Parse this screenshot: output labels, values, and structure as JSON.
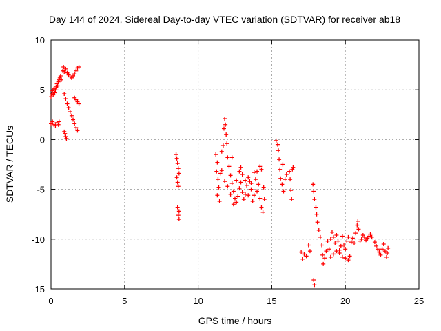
{
  "chart_data": {
    "type": "scatter",
    "title": "Day 144 of 2024, Sidereal Day-to-day VTEC variation (SDTVAR) for receiver ab18",
    "xlabel": "GPS time / hours",
    "ylabel": "SDTVAR / TECUs",
    "xlim": [
      0,
      25
    ],
    "ylim": [
      -15,
      10
    ],
    "xticks": [
      "0",
      "5",
      "10",
      "15",
      "20",
      "25"
    ],
    "yticks": [
      "10",
      "5",
      "0",
      "-5",
      "-10",
      "-15"
    ],
    "grid": true,
    "legend": "none",
    "marker": "+",
    "color": "#ff0000",
    "series": [
      {
        "points": [
          [
            0.0,
            4.3
          ],
          [
            0.05,
            4.6
          ],
          [
            0.1,
            4.9
          ],
          [
            0.15,
            4.5
          ],
          [
            0.2,
            5.1
          ],
          [
            0.25,
            4.7
          ],
          [
            0.3,
            5.0
          ],
          [
            0.35,
            5.3
          ],
          [
            0.4,
            5.6
          ],
          [
            0.45,
            5.4
          ],
          [
            0.5,
            5.8
          ],
          [
            0.55,
            6.0
          ],
          [
            0.6,
            6.2
          ],
          [
            0.65,
            6.4
          ],
          [
            0.7,
            6.0
          ],
          [
            0.0,
            1.6
          ],
          [
            0.1,
            1.8
          ],
          [
            0.2,
            1.5
          ],
          [
            0.3,
            1.4
          ],
          [
            0.4,
            1.7
          ],
          [
            0.5,
            1.5
          ],
          [
            0.55,
            1.8
          ],
          [
            0.8,
            6.9
          ],
          [
            0.85,
            7.3
          ],
          [
            0.9,
            6.8
          ],
          [
            1.0,
            7.1
          ],
          [
            1.1,
            6.7
          ],
          [
            1.2,
            6.5
          ],
          [
            1.3,
            6.3
          ],
          [
            1.4,
            6.2
          ],
          [
            1.5,
            6.4
          ],
          [
            1.6,
            6.6
          ],
          [
            1.7,
            6.9
          ],
          [
            1.8,
            7.2
          ],
          [
            1.9,
            7.3
          ],
          [
            0.9,
            4.6
          ],
          [
            1.0,
            4.1
          ],
          [
            1.1,
            3.6
          ],
          [
            1.2,
            3.2
          ],
          [
            1.3,
            2.8
          ],
          [
            1.4,
            2.4
          ],
          [
            1.5,
            2.0
          ],
          [
            1.6,
            1.6
          ],
          [
            1.7,
            1.2
          ],
          [
            1.8,
            0.9
          ],
          [
            0.9,
            0.8
          ],
          [
            0.95,
            0.6
          ],
          [
            1.0,
            0.3
          ],
          [
            1.05,
            0.1
          ],
          [
            1.6,
            4.2
          ],
          [
            1.7,
            4.0
          ],
          [
            1.8,
            3.8
          ],
          [
            1.9,
            3.6
          ],
          [
            8.5,
            -1.5
          ],
          [
            8.55,
            -1.9
          ],
          [
            8.6,
            -2.4
          ],
          [
            8.65,
            -2.9
          ],
          [
            8.7,
            -3.4
          ],
          [
            8.55,
            -3.8
          ],
          [
            8.6,
            -4.3
          ],
          [
            8.65,
            -4.7
          ],
          [
            8.6,
            -6.8
          ],
          [
            8.7,
            -7.2
          ],
          [
            8.65,
            -7.6
          ],
          [
            8.7,
            -8.0
          ],
          [
            11.2,
            -1.5
          ],
          [
            11.3,
            -2.3
          ],
          [
            11.25,
            -3.2
          ],
          [
            11.35,
            -4.0
          ],
          [
            11.4,
            -4.8
          ],
          [
            11.3,
            -5.6
          ],
          [
            11.45,
            -6.2
          ],
          [
            11.5,
            -3.4
          ],
          [
            11.6,
            -1.2
          ],
          [
            11.7,
            -0.6
          ],
          [
            11.75,
            1.1
          ],
          [
            11.8,
            2.1
          ],
          [
            11.85,
            1.5
          ],
          [
            11.9,
            0.5
          ],
          [
            11.95,
            -0.4
          ],
          [
            12.0,
            -1.8
          ],
          [
            12.1,
            -2.7
          ],
          [
            12.2,
            -3.6
          ],
          [
            12.3,
            -4.4
          ],
          [
            12.4,
            -5.2
          ],
          [
            12.5,
            -5.9
          ],
          [
            12.6,
            -6.3
          ],
          [
            12.7,
            -5.7
          ],
          [
            12.8,
            -4.9
          ],
          [
            12.9,
            -4.3
          ],
          [
            13.0,
            -5.3
          ],
          [
            13.1,
            -6.0
          ],
          [
            13.2,
            -5.5
          ],
          [
            13.3,
            -4.6
          ],
          [
            13.4,
            -3.8
          ],
          [
            13.5,
            -4.2
          ],
          [
            13.6,
            -5.0
          ],
          [
            13.7,
            -6.2
          ],
          [
            13.8,
            -5.6
          ],
          [
            13.9,
            -4.0
          ],
          [
            14.0,
            -3.2
          ],
          [
            14.1,
            -4.5
          ],
          [
            14.2,
            -5.9
          ],
          [
            14.3,
            -6.8
          ],
          [
            14.4,
            -7.3
          ],
          [
            14.5,
            -6.0
          ],
          [
            14.45,
            -4.8
          ],
          [
            14.3,
            -3.0
          ],
          [
            14.2,
            -2.7
          ],
          [
            11.6,
            -3.1
          ],
          [
            11.8,
            -4.2
          ],
          [
            12.0,
            -4.7
          ],
          [
            12.2,
            -5.5
          ],
          [
            12.4,
            -6.5
          ],
          [
            12.6,
            -4.1
          ],
          [
            12.8,
            -3.2
          ],
          [
            13.0,
            -3.5
          ],
          [
            13.2,
            -4.1
          ],
          [
            13.4,
            -5.6
          ],
          [
            13.6,
            -4.4
          ],
          [
            13.8,
            -3.3
          ],
          [
            14.0,
            -5.2
          ],
          [
            12.9,
            -2.8
          ],
          [
            12.3,
            -1.8
          ],
          [
            15.3,
            -0.1
          ],
          [
            15.4,
            -0.5
          ],
          [
            15.45,
            -1.1
          ],
          [
            15.5,
            -2.0
          ],
          [
            15.55,
            -3.0
          ],
          [
            15.6,
            -3.9
          ],
          [
            15.7,
            -4.5
          ],
          [
            15.8,
            -5.2
          ],
          [
            15.9,
            -4.0
          ],
          [
            16.0,
            -3.5
          ],
          [
            15.75,
            -2.5
          ],
          [
            16.2,
            -3.2
          ],
          [
            16.25,
            -4.0
          ],
          [
            16.3,
            -5.1
          ],
          [
            16.35,
            -6.0
          ],
          [
            16.4,
            -3.0
          ],
          [
            16.45,
            -2.8
          ],
          [
            17.0,
            -11.3
          ],
          [
            17.1,
            -12.0
          ],
          [
            17.2,
            -11.5
          ],
          [
            17.35,
            -11.7
          ],
          [
            17.5,
            -10.6
          ],
          [
            17.6,
            -11.2
          ],
          [
            17.8,
            -4.5
          ],
          [
            17.85,
            -5.2
          ],
          [
            17.9,
            -6.0
          ],
          [
            18.0,
            -6.8
          ],
          [
            18.05,
            -7.5
          ],
          [
            18.1,
            -8.3
          ],
          [
            18.2,
            -9.1
          ],
          [
            18.3,
            -9.8
          ],
          [
            18.4,
            -10.6
          ],
          [
            18.45,
            -11.6
          ],
          [
            18.5,
            -12.5
          ],
          [
            18.6,
            -11.9
          ],
          [
            18.7,
            -11.2
          ],
          [
            18.8,
            -10.2
          ],
          [
            18.9,
            -11.0
          ],
          [
            17.85,
            -14.1
          ],
          [
            17.9,
            -14.6
          ],
          [
            19.0,
            -10.0
          ],
          [
            19.1,
            -9.3
          ],
          [
            19.2,
            -9.8
          ],
          [
            19.3,
            -10.4
          ],
          [
            19.4,
            -9.6
          ],
          [
            19.5,
            -10.2
          ],
          [
            19.6,
            -11.1
          ],
          [
            19.7,
            -10.7
          ],
          [
            19.8,
            -9.7
          ],
          [
            19.9,
            -10.6
          ],
          [
            20.0,
            -11.0
          ],
          [
            20.1,
            -10.2
          ],
          [
            20.2,
            -9.8
          ],
          [
            19.0,
            -11.8
          ],
          [
            19.2,
            -11.5
          ],
          [
            19.4,
            -11.2
          ],
          [
            19.6,
            -11.4
          ],
          [
            19.8,
            -11.8
          ],
          [
            20.0,
            -11.9
          ],
          [
            20.2,
            -12.1
          ],
          [
            20.3,
            -11.7
          ],
          [
            20.4,
            -10.3
          ],
          [
            20.5,
            -9.9
          ],
          [
            20.6,
            -10.4
          ],
          [
            20.7,
            -9.4
          ],
          [
            20.8,
            -8.6
          ],
          [
            20.85,
            -8.2
          ],
          [
            20.9,
            -9.0
          ],
          [
            21.0,
            -10.2
          ],
          [
            21.1,
            -10.0
          ],
          [
            21.2,
            -9.6
          ],
          [
            21.3,
            -9.8
          ],
          [
            21.4,
            -10.1
          ],
          [
            21.5,
            -9.9
          ],
          [
            21.6,
            -9.7
          ],
          [
            21.7,
            -9.5
          ],
          [
            21.8,
            -9.8
          ],
          [
            22.0,
            -10.3
          ],
          [
            22.1,
            -10.7
          ],
          [
            22.2,
            -11.0
          ],
          [
            22.3,
            -11.3
          ],
          [
            22.4,
            -11.6
          ],
          [
            22.5,
            -11.0
          ],
          [
            22.6,
            -10.5
          ],
          [
            22.7,
            -11.2
          ],
          [
            22.8,
            -11.8
          ],
          [
            22.85,
            -11.4
          ],
          [
            22.9,
            -10.9
          ]
        ]
      }
    ]
  }
}
